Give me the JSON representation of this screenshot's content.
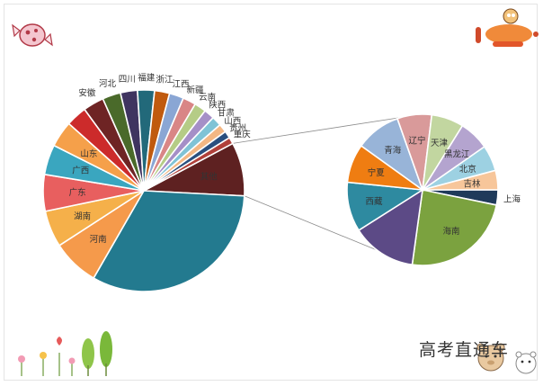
{
  "chart_data": {
    "type": "bar-of-pie",
    "title": "",
    "main_pie": {
      "slices": [
        {
          "label": "其他",
          "value": 8.2,
          "color": "#5e2121",
          "inside": true
        },
        {
          "label": "",
          "value": 31.0,
          "color": "#237a8f",
          "inside": true
        },
        {
          "label": "河南",
          "value": 7.2,
          "color": "#f59a4b",
          "inside": true
        },
        {
          "label": "湖南",
          "value": 5.6,
          "color": "#f5b04a",
          "inside": true
        },
        {
          "label": "广东",
          "value": 5.6,
          "color": "#e85f5f",
          "inside": true
        },
        {
          "label": "广西",
          "value": 4.6,
          "color": "#3aa6bf",
          "inside": true
        },
        {
          "label": "山东",
          "value": 4.0,
          "color": "#f5a04a",
          "inside": true
        },
        {
          "label": "",
          "value": 3.2,
          "color": "#cc2b2b",
          "inside": true
        },
        {
          "label": "安徽",
          "value": 3.2,
          "color": "#6e2424",
          "inside": false
        },
        {
          "label": "河北",
          "value": 2.8,
          "color": "#4a6a2a",
          "inside": false
        },
        {
          "label": "四川",
          "value": 2.6,
          "color": "#3f3460",
          "inside": false
        },
        {
          "label": "福建",
          "value": 2.6,
          "color": "#22697a",
          "inside": false
        },
        {
          "label": "浙江",
          "value": 2.3,
          "color": "#c05a0e",
          "inside": false
        },
        {
          "label": "江西",
          "value": 2.2,
          "color": "#8aa6d4",
          "inside": false
        },
        {
          "label": "新疆",
          "value": 2.0,
          "color": "#d98686",
          "inside": false
        },
        {
          "label": "云南",
          "value": 1.8,
          "color": "#b5cc86",
          "inside": false
        },
        {
          "label": "陕西",
          "value": 1.6,
          "color": "#a58fc7",
          "inside": false
        },
        {
          "label": "甘肃",
          "value": 1.5,
          "color": "#7fc3d6",
          "inside": false
        },
        {
          "label": "山西",
          "value": 1.3,
          "color": "#f3b784",
          "inside": false
        },
        {
          "label": "贵州",
          "value": 1.1,
          "color": "#2a4f7f",
          "inside": false
        },
        {
          "label": "重庆",
          "value": 1.0,
          "color": "#b0403a",
          "inside": false
        }
      ]
    },
    "secondary_pie": {
      "slices": [
        {
          "label": "上海",
          "value": 3.5,
          "color": "#1f3a5a",
          "inside": false
        },
        {
          "label": "海南",
          "value": 26.0,
          "color": "#7ba23f",
          "inside": true
        },
        {
          "label": "",
          "value": 15.0,
          "color": "#5c4a86",
          "inside": true
        },
        {
          "label": "西藏",
          "value": 11.5,
          "color": "#2e8aa0",
          "inside": true
        },
        {
          "label": "宁夏",
          "value": 9.0,
          "color": "#ef7d12",
          "inside": true
        },
        {
          "label": "青海",
          "value": 10.5,
          "color": "#98b4d8",
          "inside": true
        },
        {
          "label": "辽宁",
          "value": 8.0,
          "color": "#d99a9a",
          "inside": true
        },
        {
          "label": "天津",
          "value": 7.5,
          "color": "#c2d6a0",
          "inside": true
        },
        {
          "label": "黑龙江",
          "value": 7.0,
          "color": "#b4a4cf",
          "inside": true
        },
        {
          "label": "北京",
          "value": 6.0,
          "color": "#9dd1e2",
          "inside": true
        },
        {
          "label": "吉林",
          "value": 4.5,
          "color": "#f7c69a",
          "inside": true
        }
      ]
    },
    "legend": "none"
  },
  "watermark": "高考直通车"
}
